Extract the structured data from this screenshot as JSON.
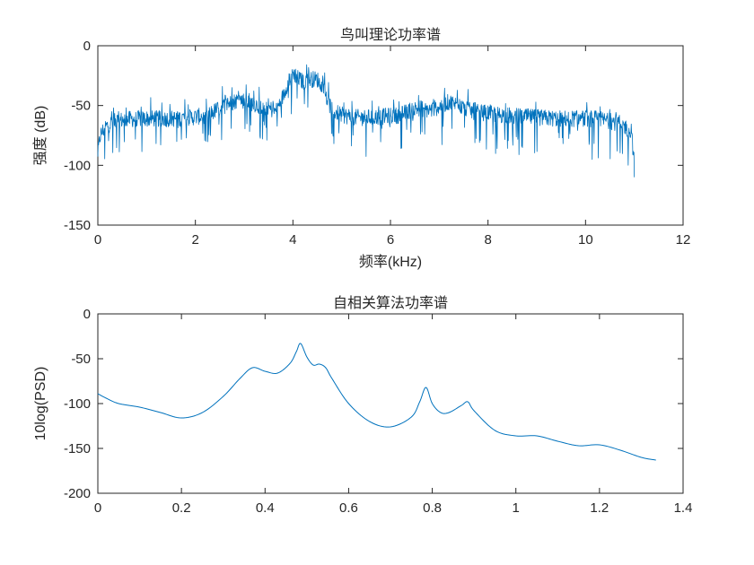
{
  "chart_data": [
    {
      "type": "line",
      "title": "鸟叫理论功率谱",
      "xlabel": "频率(kHz)",
      "ylabel": "强度 (dB)",
      "xlim": [
        0,
        12
      ],
      "ylim": [
        -150,
        0
      ],
      "xticks": [
        "0",
        "2",
        "4",
        "6",
        "8",
        "10",
        "12"
      ],
      "yticks": [
        "-150",
        "-100",
        "-50",
        "0"
      ],
      "grid": false,
      "line_color": "#0072BD",
      "series": [
        {
          "x": [
            0,
            0.05,
            0.15,
            0.3,
            0.5,
            0.8,
            1.0,
            1.3,
            1.6,
            1.9,
            2.1,
            2.3,
            2.5,
            2.7,
            2.9,
            3.1,
            3.3,
            3.5,
            3.65,
            3.8,
            3.9,
            4.0,
            4.1,
            4.2,
            4.35,
            4.5,
            4.6,
            4.8,
            5.0,
            5.3,
            5.6,
            5.9,
            6.2,
            6.4,
            6.6,
            6.8,
            7.0,
            7.2,
            7.4,
            7.6,
            7.8,
            8.0,
            8.3,
            8.6,
            9.0,
            9.4,
            9.8,
            10.2,
            10.5,
            10.7,
            10.8,
            10.9,
            10.95,
            11.0
          ],
          "values": [
            -90,
            -75,
            -68,
            -64,
            -62,
            -61,
            -61,
            -61,
            -61,
            -60,
            -59,
            -57,
            -52,
            -48,
            -45,
            -47,
            -50,
            -52,
            -55,
            -42,
            -30,
            -22,
            -27,
            -30,
            -28,
            -28,
            -35,
            -54,
            -58,
            -60,
            -60,
            -59,
            -58,
            -54,
            -52,
            -54,
            -51,
            -47,
            -50,
            -54,
            -56,
            -56,
            -58,
            -59,
            -60,
            -61,
            -61,
            -61,
            -63,
            -65,
            -67,
            -72,
            -78,
            -95
          ]
        }
      ]
    },
    {
      "type": "line",
      "title": "自相关算法功率谱",
      "xlabel": "",
      "ylabel": "10log(PSD)",
      "xlim": [
        0,
        1.4
      ],
      "ylim": [
        -200,
        0
      ],
      "xticks": [
        "0",
        "0.2",
        "0.4",
        "0.6",
        "0.8",
        "1",
        "1.2",
        "1.4"
      ],
      "yticks": [
        "-200",
        "-150",
        "-100",
        "-50",
        "0"
      ],
      "grid": false,
      "line_color": "#0072BD",
      "series": [
        {
          "x": [
            0,
            0.02,
            0.05,
            0.1,
            0.15,
            0.2,
            0.25,
            0.3,
            0.34,
            0.37,
            0.4,
            0.43,
            0.46,
            0.475,
            0.485,
            0.5,
            0.515,
            0.53,
            0.545,
            0.56,
            0.6,
            0.65,
            0.7,
            0.75,
            0.77,
            0.785,
            0.8,
            0.82,
            0.84,
            0.87,
            0.885,
            0.9,
            0.95,
            1.0,
            1.05,
            1.1,
            1.15,
            1.2,
            1.25,
            1.3,
            1.335
          ],
          "values": [
            -89,
            -94,
            -100,
            -104,
            -110,
            -116,
            -110,
            -92,
            -72,
            -60,
            -64,
            -66,
            -55,
            -42,
            -33,
            -48,
            -57,
            -56,
            -60,
            -72,
            -100,
            -120,
            -126,
            -115,
            -98,
            -82,
            -100,
            -110,
            -110,
            -102,
            -98,
            -108,
            -130,
            -136,
            -136,
            -142,
            -147,
            -146,
            -152,
            -160,
            -163
          ]
        }
      ]
    }
  ]
}
